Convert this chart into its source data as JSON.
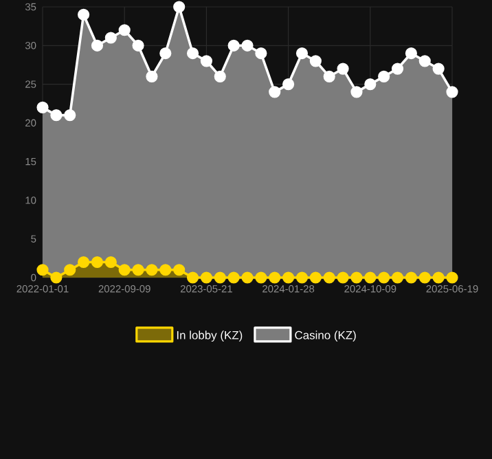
{
  "chart_data": {
    "type": "area",
    "categories": [
      "2022-01-01",
      null,
      null,
      null,
      null,
      null,
      "2022-09-09",
      null,
      null,
      null,
      null,
      null,
      "2023-05-21",
      null,
      null,
      null,
      null,
      null,
      "2024-01-28",
      null,
      null,
      null,
      null,
      null,
      "2024-10-09",
      null,
      null,
      null,
      null,
      null,
      "2025-06-19"
    ],
    "series": [
      {
        "name": "In lobby (KZ)",
        "color": "#ffd700",
        "values": [
          1,
          0,
          1,
          2,
          2,
          2,
          1,
          1,
          1,
          1,
          1,
          0,
          0,
          0,
          0,
          0,
          0,
          0,
          0,
          0,
          0,
          0,
          0,
          0,
          0,
          0,
          0,
          0,
          0,
          0,
          0
        ]
      },
      {
        "name": "Casino (KZ)",
        "color": "#ffffff",
        "values": [
          22,
          21,
          21,
          34,
          30,
          31,
          32,
          30,
          26,
          29,
          35,
          29,
          28,
          26,
          30,
          30,
          29,
          24,
          25,
          29,
          28,
          26,
          27,
          24,
          25,
          26,
          27,
          29,
          28,
          27,
          24
        ]
      }
    ],
    "ylim": [
      0,
      35
    ],
    "yticks": [
      0,
      5,
      10,
      15,
      20,
      25,
      30,
      35
    ],
    "grid": true,
    "legend": "bottom",
    "marker": "circle"
  }
}
